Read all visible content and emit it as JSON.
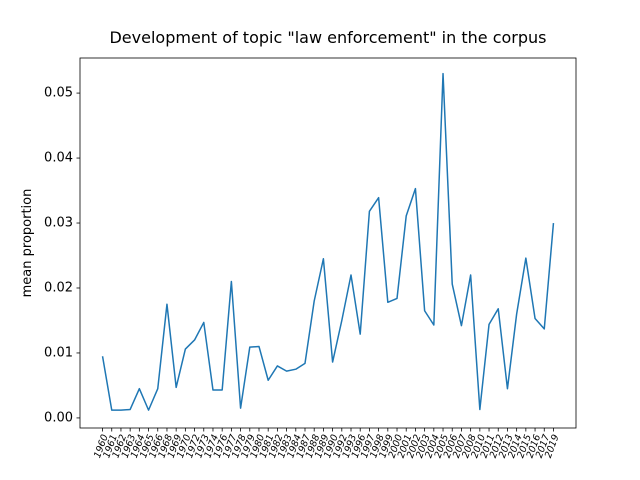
{
  "chart_data": {
    "type": "line",
    "title": "Development of topic \"law enforcement\" in the corpus",
    "ylabel": "mean proportion",
    "categories": [
      "1960",
      "1961",
      "1962",
      "1963",
      "1964",
      "1965",
      "1966",
      "1968",
      "1969",
      "1970",
      "1972",
      "1973",
      "1974",
      "1976",
      "1977",
      "1978",
      "1979",
      "1980",
      "1981",
      "1982",
      "1983",
      "1984",
      "1987",
      "1988",
      "1989",
      "1990",
      "1992",
      "1993",
      "1996",
      "1997",
      "1998",
      "1999",
      "2000",
      "2001",
      "2002",
      "2003",
      "2004",
      "2005",
      "2006",
      "2007",
      "2008",
      "2010",
      "2011",
      "2012",
      "2013",
      "2014",
      "2015",
      "2016",
      "2017",
      "2019"
    ],
    "series": [
      {
        "name": "law enforcement",
        "color": "#1f77b4",
        "values": [
          0.0095,
          0.0012,
          0.0012,
          0.0013,
          0.0045,
          0.0012,
          0.0045,
          0.0175,
          0.0047,
          0.0106,
          0.012,
          0.0147,
          0.0043,
          0.0043,
          0.021,
          0.0015,
          0.0109,
          0.011,
          0.0058,
          0.008,
          0.0072,
          0.0075,
          0.0084,
          0.018,
          0.0245,
          0.0086,
          0.015,
          0.022,
          0.0129,
          0.0318,
          0.0339,
          0.0178,
          0.0184,
          0.0311,
          0.0353,
          0.0165,
          0.0143,
          0.053,
          0.0206,
          0.0142,
          0.022,
          0.0013,
          0.0144,
          0.0168,
          0.0045,
          0.016,
          0.0246,
          0.0153,
          0.0137,
          0.03
        ]
      }
    ],
    "ylim": [
      -0.00155,
      0.0554
    ],
    "yticks": [
      {
        "value": 0,
        "label": "0.00"
      },
      {
        "value": 0.01,
        "label": "0.01"
      },
      {
        "value": 0.02,
        "label": "0.02"
      },
      {
        "value": 0.03,
        "label": "0.03"
      },
      {
        "value": 0.04,
        "label": "0.04"
      },
      {
        "value": 0.05,
        "label": "0.05"
      }
    ],
    "grid": false
  }
}
